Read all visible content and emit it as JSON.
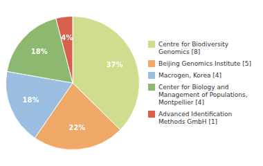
{
  "chart_data": {
    "type": "pie",
    "categories": [
      "Centre for Biodiversity\nGenomics [8]",
      "Beijing Genomics Institute [5]",
      "Macrogen, Korea [4]",
      "Center for Biology and\nManagement of Populations,\nMontpellier [4]",
      "Advanced Identification\nMethods GmbH [1]"
    ],
    "values": [
      37,
      22,
      18,
      18,
      4
    ],
    "value_labels": [
      "37%",
      "22%",
      "18%",
      "18%",
      "4%"
    ],
    "colors": [
      "#cedd8e",
      "#f0a868",
      "#9abde0",
      "#8db870",
      "#d8614e"
    ],
    "data_labels": true,
    "legend": "right"
  }
}
